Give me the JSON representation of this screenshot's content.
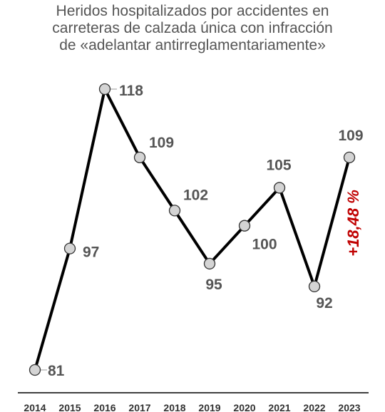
{
  "chart_data": {
    "type": "line",
    "title_lines": [
      "Heridos hospitalizados por accidentes en",
      "carreteras de calzada única con infracción",
      "de «adelantar antirreglamentariamente»"
    ],
    "categories": [
      "2014",
      "2015",
      "2016",
      "2017",
      "2018",
      "2019",
      "2020",
      "2021",
      "2022",
      "2023"
    ],
    "values": [
      81,
      97,
      118,
      109,
      102,
      95,
      100,
      105,
      92,
      109
    ],
    "data_labels": [
      "81",
      "97",
      "118",
      "109",
      "102",
      "95",
      "100",
      "105",
      "92",
      "109"
    ],
    "annotation": {
      "text": "+18,48 %",
      "color": "#c00000"
    },
    "xlabel": "",
    "ylabel": "",
    "ylim": [
      81,
      118
    ],
    "grid": false,
    "legend": "none",
    "colors": {
      "line": "#000000",
      "marker_fill": "#d4d4d4",
      "label": "#555555",
      "axis": "#000000"
    }
  }
}
